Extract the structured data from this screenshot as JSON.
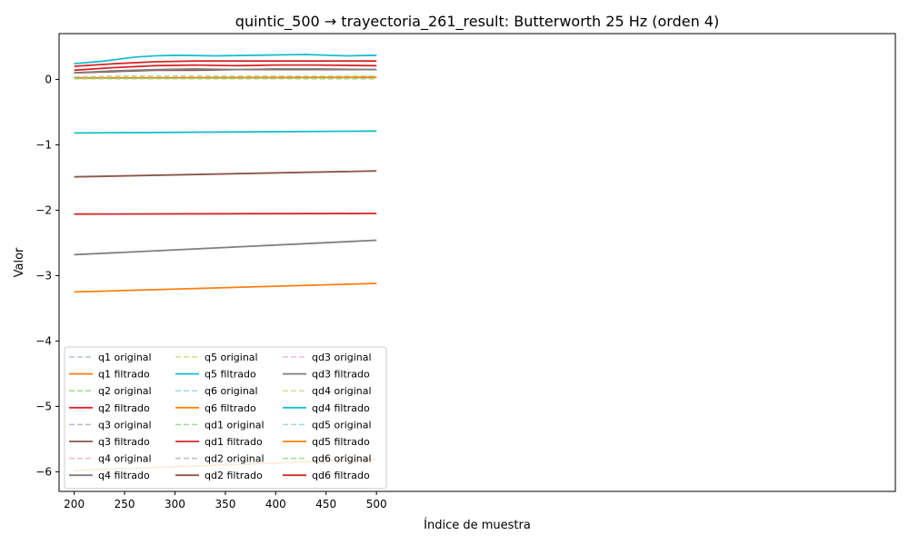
{
  "chart_data": {
    "type": "line",
    "title": "quintic_500 → trayectoria_261_result: Butterworth 25 Hz (orden 4)",
    "xlabel": "Índice de muestra",
    "ylabel": "Valor",
    "xlim": [
      185,
      1015.0
    ],
    "ylim": [
      -6.3,
      0.7
    ],
    "xticks": [
      200,
      250,
      300,
      350,
      400,
      450,
      500
    ],
    "yticks": [
      -6,
      -5,
      -4,
      -3,
      -2,
      -1,
      0
    ],
    "ytick_labels": [
      "−6",
      "−5",
      "−4",
      "−3",
      "−2",
      "−1",
      "0"
    ],
    "grid": false,
    "legend": {
      "placement": "lower-left",
      "columns": 3
    },
    "series": [
      {
        "name": "q1 original",
        "color": "#aec7e8",
        "dash": true,
        "x": [
          200,
          500
        ],
        "y": [
          -5.98,
          -5.81
        ]
      },
      {
        "name": "q1 filtrado",
        "color": "#ff7f0e",
        "dash": false,
        "x": [
          200,
          500
        ],
        "y": [
          -5.98,
          -5.81
        ]
      },
      {
        "name": "q2 original",
        "color": "#98df8a",
        "dash": true,
        "x": [
          200,
          500
        ],
        "y": [
          -2.06,
          -2.05
        ]
      },
      {
        "name": "q2 filtrado",
        "color": "#d62728",
        "dash": false,
        "x": [
          200,
          500
        ],
        "y": [
          -2.06,
          -2.05
        ]
      },
      {
        "name": "q3 original",
        "color": "#c5b0d5",
        "dash": true,
        "x": [
          200,
          500
        ],
        "y": [
          -1.49,
          -1.4
        ]
      },
      {
        "name": "q3 filtrado",
        "color": "#8c564b",
        "dash": false,
        "x": [
          200,
          500
        ],
        "y": [
          -1.49,
          -1.4
        ]
      },
      {
        "name": "q4 original",
        "color": "#f7b6d2",
        "dash": true,
        "x": [
          200,
          500
        ],
        "y": [
          -2.68,
          -2.46
        ]
      },
      {
        "name": "q4 filtrado",
        "color": "#7f7f7f",
        "dash": false,
        "x": [
          200,
          500
        ],
        "y": [
          -2.68,
          -2.46
        ]
      },
      {
        "name": "q5 original",
        "color": "#dbdb8d",
        "dash": true,
        "x": [
          200,
          500
        ],
        "y": [
          -0.82,
          -0.79
        ]
      },
      {
        "name": "q5 filtrado",
        "color": "#17becf",
        "dash": false,
        "x": [
          200,
          500
        ],
        "y": [
          -0.82,
          -0.79
        ]
      },
      {
        "name": "q6 original",
        "color": "#9edae5",
        "dash": true,
        "x": [
          200,
          500
        ],
        "y": [
          -3.25,
          -3.12
        ]
      },
      {
        "name": "q6 filtrado",
        "color": "#ff7f0e",
        "dash": false,
        "x": [
          200,
          500
        ],
        "y": [
          -3.25,
          -3.12
        ]
      },
      {
        "name": "qd1 original",
        "color": "#98df8a",
        "dash": true,
        "x": [
          200,
          240,
          280,
          320,
          360,
          400,
          440,
          500
        ],
        "y": [
          0.04,
          0.05,
          0.05,
          0.05,
          0.05,
          0.05,
          0.05,
          0.05
        ]
      },
      {
        "name": "qd1 filtrado",
        "color": "#d62728",
        "dash": false,
        "x": [
          200,
          240,
          280,
          320,
          360,
          400,
          440,
          500
        ],
        "y": [
          0.14,
          0.18,
          0.21,
          0.22,
          0.21,
          0.22,
          0.22,
          0.21
        ]
      },
      {
        "name": "qd2 original",
        "color": "#c5b0d5",
        "dash": true,
        "x": [
          200,
          500
        ],
        "y": [
          0.01,
          0.01
        ]
      },
      {
        "name": "qd2 filtrado",
        "color": "#8c564b",
        "dash": false,
        "x": [
          200,
          240,
          280,
          320,
          360,
          400,
          440,
          500
        ],
        "y": [
          0.1,
          0.12,
          0.14,
          0.14,
          0.15,
          0.15,
          0.15,
          0.15
        ]
      },
      {
        "name": "qd3 original",
        "color": "#f7b6d2",
        "dash": true,
        "x": [
          200,
          500
        ],
        "y": [
          0.02,
          0.02
        ]
      },
      {
        "name": "qd3 filtrado",
        "color": "#7f7f7f",
        "dash": false,
        "x": [
          200,
          240,
          280,
          320,
          360,
          400,
          440,
          500
        ],
        "y": [
          0.1,
          0.13,
          0.15,
          0.16,
          0.15,
          0.16,
          0.16,
          0.15
        ]
      },
      {
        "name": "qd4 original",
        "color": "#dbdb8d",
        "dash": true,
        "x": [
          200,
          500
        ],
        "y": [
          0.03,
          0.03
        ]
      },
      {
        "name": "qd4 filtrado",
        "color": "#17becf",
        "dash": false,
        "x": [
          200,
          230,
          260,
          280,
          300,
          340,
          380,
          430,
          470,
          500
        ],
        "y": [
          0.24,
          0.28,
          0.34,
          0.36,
          0.37,
          0.36,
          0.37,
          0.38,
          0.36,
          0.37
        ]
      },
      {
        "name": "qd5 original",
        "color": "#9edae5",
        "dash": true,
        "x": [
          200,
          500
        ],
        "y": [
          0.02,
          0.02
        ]
      },
      {
        "name": "qd5 filtrado",
        "color": "#ff7f0e",
        "dash": false,
        "x": [
          200,
          500
        ],
        "y": [
          0.02,
          0.03
        ]
      },
      {
        "name": "qd6 original",
        "color": "#98df8a",
        "dash": true,
        "x": [
          200,
          500
        ],
        "y": [
          0.01,
          0.01
        ]
      },
      {
        "name": "qd6 filtrado",
        "color": "#d62728",
        "dash": false,
        "x": [
          200,
          240,
          280,
          320,
          360,
          400,
          440,
          500
        ],
        "y": [
          0.2,
          0.24,
          0.27,
          0.28,
          0.28,
          0.28,
          0.28,
          0.28
        ]
      }
    ]
  }
}
